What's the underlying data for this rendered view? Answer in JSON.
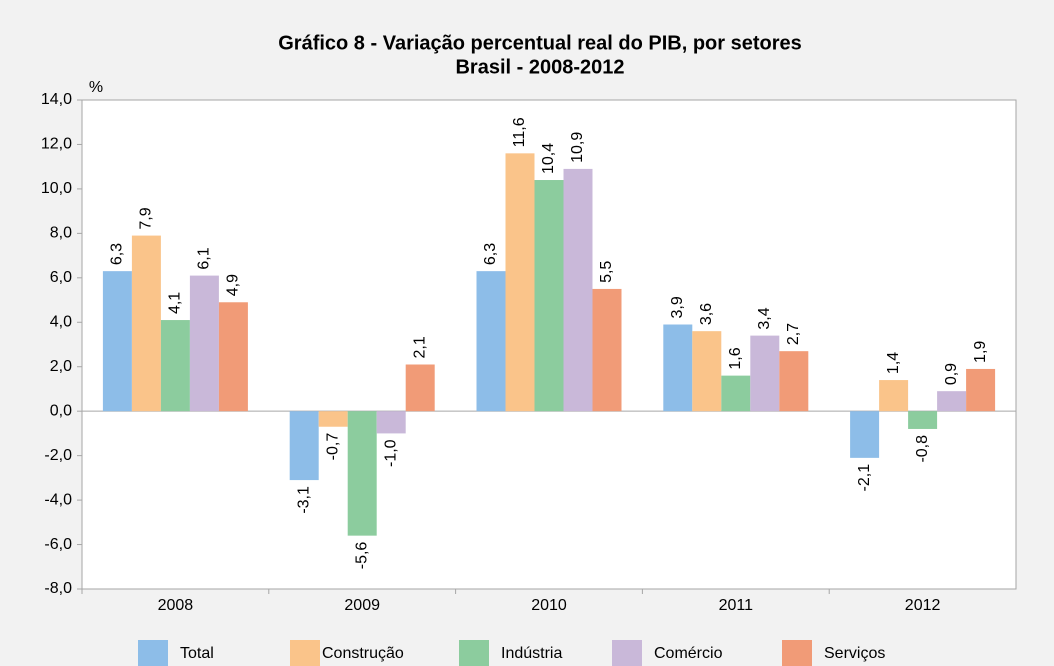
{
  "chart_data": {
    "type": "bar",
    "title": "Gráfico 8 - Variação percentual real do PIB, por setores",
    "subtitle": "Brasil - 2008-2012",
    "y_label": "%",
    "categories": [
      "2008",
      "2009",
      "2010",
      "2011",
      "2012"
    ],
    "series": [
      {
        "name": "Total",
        "color": "#8dbde8",
        "values": [
          6.3,
          -3.1,
          6.3,
          3.9,
          -2.1
        ],
        "value_labels": [
          "6,3",
          "-3,1",
          "6,3",
          "3,9",
          "-2,1"
        ]
      },
      {
        "name": "Construção",
        "color": "#fac48a",
        "values": [
          7.9,
          -0.7,
          11.6,
          3.6,
          1.4
        ],
        "value_labels": [
          "7,9",
          "-0,7",
          "11,6",
          "3,6",
          "1,4"
        ]
      },
      {
        "name": "Indústria",
        "color": "#8ccc9e",
        "values": [
          4.1,
          -5.6,
          10.4,
          1.6,
          -0.8
        ],
        "value_labels": [
          "4,1",
          "-5,6",
          "10,4",
          "1,6",
          "-0,8"
        ]
      },
      {
        "name": "Comércio",
        "color": "#c9b8d9",
        "values": [
          6.1,
          -1.0,
          10.9,
          3.4,
          0.9
        ],
        "value_labels": [
          "6,1",
          "-1,0",
          "10,9",
          "3,4",
          "0,9"
        ]
      },
      {
        "name": "Serviços",
        "color": "#f19b77",
        "values": [
          4.9,
          2.1,
          5.5,
          2.7,
          1.9
        ],
        "value_labels": [
          "4,9",
          "2,1",
          "5,5",
          "2,7",
          "1,9"
        ]
      }
    ],
    "ylim": [
      -8,
      14
    ],
    "yticks": [
      {
        "value": -8,
        "label": "-8,0"
      },
      {
        "value": -6,
        "label": "-6,0"
      },
      {
        "value": -4,
        "label": "-4,0"
      },
      {
        "value": -2,
        "label": "-2,0"
      },
      {
        "value": 0,
        "label": "0,0"
      },
      {
        "value": 2,
        "label": "2,0"
      },
      {
        "value": 4,
        "label": "4,0"
      },
      {
        "value": 6,
        "label": "6,0"
      },
      {
        "value": 8,
        "label": "8,0"
      },
      {
        "value": 10,
        "label": "10,0"
      },
      {
        "value": 12,
        "label": "12,0"
      },
      {
        "value": 14,
        "label": "14,0"
      }
    ],
    "legend": "bottom"
  }
}
